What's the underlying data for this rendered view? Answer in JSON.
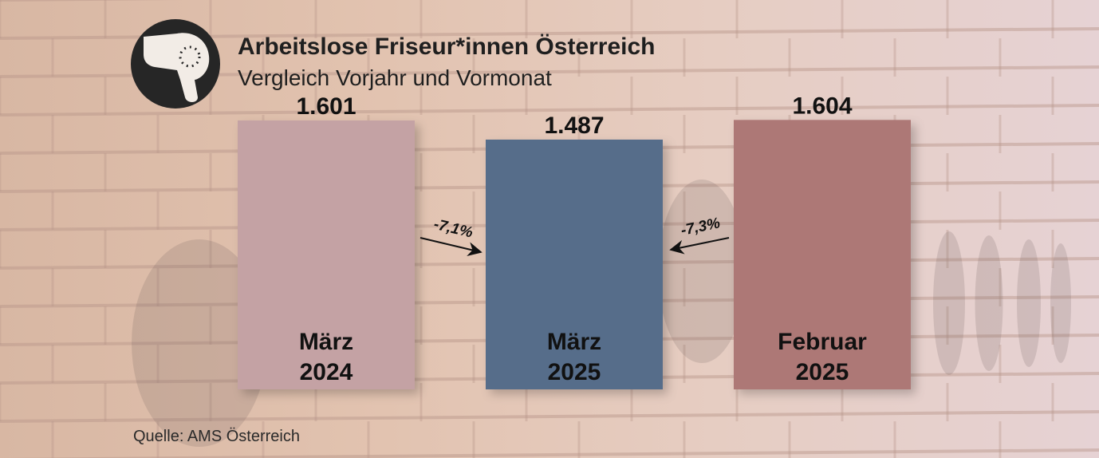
{
  "header": {
    "title": "Arbeitslose Friseur*innen Österreich",
    "subtitle": "Vergleich Vorjahr und Vormonat",
    "icon": "hair-dryer-icon"
  },
  "footer": {
    "source": "Quelle: AMS Österreich"
  },
  "colors": {
    "bar_maerz_2024": "#c4a2a4",
    "bar_maerz_2025": "#566d8a",
    "bar_februar_2025": "#ad7876",
    "logo_circle": "#262626"
  },
  "chart_data": {
    "type": "bar",
    "categories": [
      [
        "März",
        "2024"
      ],
      [
        "März",
        "2025"
      ],
      [
        "Februar",
        "2025"
      ]
    ],
    "values": [
      1601,
      1487,
      1604
    ],
    "value_labels": [
      "1.601",
      "1.487",
      "1.604"
    ],
    "ylim": [
      0,
      1900
    ],
    "grid": false,
    "annotations": [
      {
        "from": 0,
        "to": 1,
        "text": "-7,1%"
      },
      {
        "from": 2,
        "to": 1,
        "text": "-7,3%"
      }
    ]
  }
}
